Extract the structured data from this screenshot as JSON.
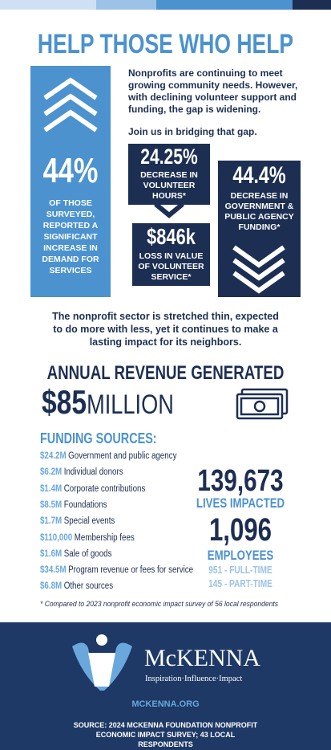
{
  "header": {
    "title": "HELP THOSE WHO HELP",
    "intro": "Nonprofits are continuing to meet growing community needs. However, with declining volunteer support and funding, the gap is widening.",
    "call": "Join us in bridging that gap."
  },
  "stats": [
    {
      "value": "44%",
      "text": "OF THOSE SURVEYED, REPORTED A SIGNIFICANT INCREASE IN DEMAND FOR SERVICES"
    },
    {
      "value": "24.25%",
      "text": "DECREASE IN VOLUNTEER HOURS*"
    },
    {
      "value": "$846k",
      "text": "LOSS IN VALUE OF VOLUNTEER SERVICE*"
    },
    {
      "value": "44.4%",
      "text": "DECREASE IN GOVERNMENT & PUBLIC AGENCY FUNDING*"
    }
  ],
  "summary": "The nonprofit sector is stretched thin, expected to do more with less, yet it continues to make a lasting impact for its neighbors.",
  "revenue": {
    "heading": "ANNUAL REVENUE GENERATED",
    "amount": "$85",
    "unit": "MILLION"
  },
  "funding": {
    "heading": "FUNDING SOURCES:",
    "items": [
      {
        "amount": "$24.2M",
        "label": "Government and public agency"
      },
      {
        "amount": "$6.2M",
        "label": "Individual donors"
      },
      {
        "amount": "$1.4M",
        "label": "Corporate contributions"
      },
      {
        "amount": "$8.5M",
        "label": "Foundations"
      },
      {
        "amount": "$1.7M",
        "label": "Special events"
      },
      {
        "amount": "$110,000",
        "label": "Membership fees"
      },
      {
        "amount": "$1.6M",
        "label": "Sale of goods"
      },
      {
        "amount": "$34.5M",
        "label": "Program revenue or fees for service"
      },
      {
        "amount": "$6.8M",
        "label": "Other sources"
      }
    ]
  },
  "impact": {
    "lives": "139,673",
    "lives_label": "LIVES IMPACTED",
    "employees": "1,096",
    "employees_label": "EMPLOYEES",
    "full_time": "951 - FULL-TIME",
    "part_time": "145 - PART-TIME"
  },
  "footnote": "* Compared to 2023 nonprofit economic impact survey of 56 local respondents",
  "footer": {
    "brand": "McKENNA",
    "tagline": "Inspiration·Influence·Impact",
    "url": "MCKENNA.ORG",
    "source": "SOURCE: 2024 MCKENNA FOUNDATION NONPROFIT ECONOMIC IMPACT SURVEY; 43 LOCAL RESPONDENTS"
  }
}
